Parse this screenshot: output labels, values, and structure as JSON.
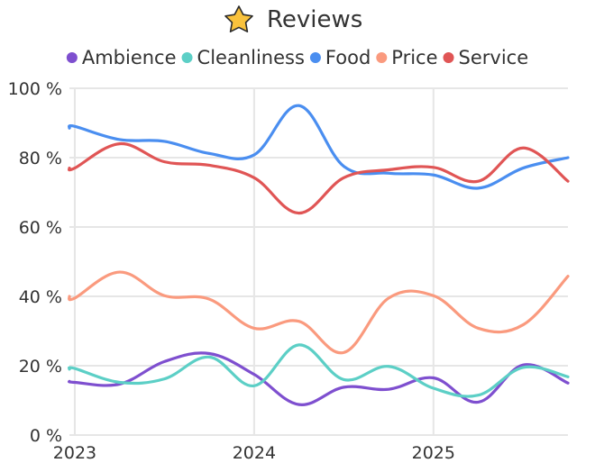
{
  "chart_data": {
    "type": "line",
    "title": "Reviews",
    "title_icon": "star-icon",
    "xlabel": "",
    "ylabel": "",
    "ylim": [
      0,
      100
    ],
    "y_ticks": [
      0,
      20,
      40,
      60,
      80,
      100
    ],
    "y_tick_labels": [
      "0 %",
      "20 %",
      "40 %",
      "60 %",
      "80 %",
      "100 %"
    ],
    "x_range": [
      2022.97,
      2025.75
    ],
    "x_ticks": [
      2023,
      2024,
      2025
    ],
    "x_tick_labels": [
      "2023",
      "2024",
      "2025"
    ],
    "grid": true,
    "legend_position": "top",
    "x": [
      2022.97,
      2023.0,
      2023.25,
      2023.5,
      2023.75,
      2024.0,
      2024.25,
      2024.5,
      2024.75,
      2025.0,
      2025.25,
      2025.5,
      2025.75
    ],
    "series": [
      {
        "name": "Ambience",
        "color": "#7e4fcf",
        "values": [
          15.5,
          15.2,
          14.7,
          21.2,
          23.5,
          17.5,
          8.8,
          13.8,
          13.2,
          16.5,
          9.5,
          20.2,
          15.0
        ]
      },
      {
        "name": "Cleanliness",
        "color": "#5ccfc6",
        "values": [
          19.0,
          19.2,
          15.2,
          16.2,
          22.5,
          14.2,
          26.0,
          16.0,
          19.8,
          13.5,
          11.5,
          19.5,
          16.8
        ]
      },
      {
        "name": "Food",
        "color": "#4a8ef0",
        "values": [
          88.5,
          89.0,
          85.2,
          84.7,
          81.2,
          80.8,
          95.0,
          77.5,
          75.5,
          75.0,
          71.2,
          77.0,
          80.0
        ]
      },
      {
        "name": "Price",
        "color": "#fa9a7e",
        "values": [
          40.0,
          39.5,
          47.0,
          40.2,
          39.2,
          30.8,
          32.8,
          23.8,
          39.5,
          40.2,
          30.8,
          31.8,
          45.8
        ]
      },
      {
        "name": "Service",
        "color": "#e05555",
        "values": [
          77.0,
          77.0,
          84.0,
          78.8,
          77.8,
          74.2,
          64.0,
          74.2,
          76.5,
          77.2,
          73.2,
          82.8,
          73.2
        ]
      }
    ]
  }
}
